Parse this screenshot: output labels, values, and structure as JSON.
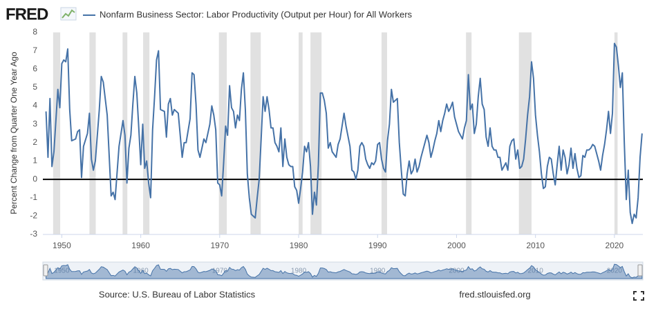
{
  "chart_data": {
    "type": "line",
    "logo": "FRED",
    "title": "Nonfarm Business Sector: Labor Productivity (Output per Hour) for All Workers",
    "y_label": "Percent Change from Quarter One Year Ago",
    "source": "Source: U.S. Bureau of Labor Statistics",
    "site": "fred.stlouisfed.org",
    "xlim": [
      1947.6,
      2023.6
    ],
    "ylim": [
      -3,
      8
    ],
    "xticks": [
      1950,
      1960,
      1970,
      1980,
      1990,
      2000,
      2010,
      2020
    ],
    "yticks": [
      -3,
      -2,
      -1,
      0,
      1,
      2,
      3,
      4,
      5,
      6,
      7,
      8
    ],
    "grid": false,
    "reference_line": 0,
    "recessions": [
      [
        1948.9,
        1949.8
      ],
      [
        1953.5,
        1954.3
      ],
      [
        1957.7,
        1958.3
      ],
      [
        1960.3,
        1961.1
      ],
      [
        1969.9,
        1970.9
      ],
      [
        1973.9,
        1975.2
      ],
      [
        1980.0,
        1980.5
      ],
      [
        1981.5,
        1982.9
      ],
      [
        1990.5,
        1991.2
      ],
      [
        2001.2,
        2001.9
      ],
      [
        2007.9,
        2009.5
      ],
      [
        2020.0,
        2020.4
      ]
    ],
    "series": [
      {
        "name": "Nonfarm Business Sector: Labor Productivity (Output per Hour) for All Workers",
        "color": "#4572a7",
        "x": [
          1948.0,
          1948.25,
          1948.5,
          1948.75,
          1949.0,
          1949.5,
          1949.75,
          1950.0,
          1950.25,
          1950.5,
          1950.75,
          1951.0,
          1951.25,
          1951.75,
          1952.0,
          1952.25,
          1952.5,
          1952.75,
          1953.25,
          1953.5,
          1953.75,
          1954.0,
          1954.25,
          1954.75,
          1955.0,
          1955.25,
          1955.75,
          1956.25,
          1956.5,
          1956.75,
          1957.25,
          1957.5,
          1957.75,
          1958.0,
          1958.25,
          1958.5,
          1958.75,
          1959.0,
          1959.25,
          1959.5,
          1959.75,
          1960.0,
          1960.25,
          1960.5,
          1960.75,
          1961.0,
          1961.25,
          1961.5,
          1961.75,
          1962.0,
          1962.25,
          1962.5,
          1963.0,
          1963.25,
          1963.5,
          1963.75,
          1964.0,
          1964.25,
          1964.75,
          1965.25,
          1965.5,
          1965.75,
          1966.25,
          1966.5,
          1966.75,
          1967.0,
          1967.25,
          1967.5,
          1968.0,
          1968.25,
          1968.75,
          1969.0,
          1969.25,
          1969.5,
          1969.75,
          1970.0,
          1970.25,
          1970.5,
          1970.75,
          1971.0,
          1971.25,
          1971.5,
          1971.75,
          1972.0,
          1972.25,
          1972.5,
          1972.75,
          1973.0,
          1973.25,
          1973.5,
          1973.75,
          1974.0,
          1974.25,
          1974.5,
          1974.75,
          1975.0,
          1975.25,
          1975.5,
          1975.75,
          1976.0,
          1976.25,
          1976.5,
          1976.75,
          1977.0,
          1977.25,
          1977.5,
          1977.75,
          1978.0,
          1978.25,
          1978.5,
          1978.75,
          1979.0,
          1979.25,
          1979.5,
          1979.75,
          1980.0,
          1980.25,
          1980.5,
          1980.75,
          1981.0,
          1981.25,
          1981.5,
          1981.75,
          1982.0,
          1982.25,
          1982.5,
          1982.75,
          1983.0,
          1983.25,
          1983.5,
          1983.75,
          1984.0,
          1984.25,
          1984.75,
          1985.0,
          1985.25,
          1985.5,
          1985.75,
          1986.0,
          1986.5,
          1986.75,
          1987.0,
          1987.25,
          1987.5,
          1987.75,
          1988.0,
          1988.25,
          1988.5,
          1988.75,
          1989.0,
          1989.25,
          1989.5,
          1989.75,
          1990.0,
          1990.25,
          1990.5,
          1990.75,
          1991.0,
          1991.25,
          1991.5,
          1991.75,
          1992.0,
          1992.25,
          1992.5,
          1992.75,
          1993.0,
          1993.25,
          1993.5,
          1993.75,
          1994.0,
          1994.25,
          1994.5,
          1994.75,
          1995.0,
          1995.25,
          1995.5,
          1995.75,
          1996.0,
          1996.25,
          1996.5,
          1996.75,
          1997.0,
          1997.25,
          1997.5,
          1997.75,
          1998.0,
          1998.25,
          1998.5,
          1998.75,
          1999.0,
          1999.25,
          1999.5,
          1999.75,
          2000.0,
          2000.25,
          2000.5,
          2000.75,
          2001.0,
          2001.25,
          2001.5,
          2001.75,
          2002.0,
          2002.25,
          2002.5,
          2002.75,
          2003.0,
          2003.25,
          2003.5,
          2003.75,
          2004.0,
          2004.25,
          2004.5,
          2004.75,
          2005.0,
          2005.25,
          2005.5,
          2005.75,
          2006.0,
          2006.25,
          2006.5,
          2006.75,
          2007.0,
          2007.25,
          2007.5,
          2007.75,
          2008.0,
          2008.25,
          2008.5,
          2008.75,
          2009.0,
          2009.25,
          2009.5,
          2009.75,
          2010.0,
          2010.25,
          2010.5,
          2010.75,
          2011.0,
          2011.25,
          2011.5,
          2011.75,
          2012.0,
          2012.25,
          2012.5,
          2012.75,
          2013.0,
          2013.25,
          2013.5,
          2013.75,
          2014.0,
          2014.25,
          2014.5,
          2014.75,
          2015.0,
          2015.25,
          2015.5,
          2015.75,
          2016.0,
          2016.25,
          2016.5,
          2016.75,
          2017.0,
          2017.25,
          2017.5,
          2017.75,
          2018.0,
          2018.25,
          2018.5,
          2018.75,
          2019.0,
          2019.25,
          2019.5,
          2019.75,
          2020.0,
          2020.25,
          2020.5,
          2020.75,
          2021.0,
          2021.25,
          2021.5,
          2021.75,
          2022.0,
          2022.25,
          2022.5,
          2022.75,
          2023.0,
          2023.25,
          2023.5
        ],
        "values": [
          3.7,
          1.2,
          4.4,
          0.7,
          1.5,
          4.9,
          3.9,
          6.3,
          6.5,
          6.4,
          7.1,
          3.8,
          2.1,
          2.2,
          2.6,
          2.7,
          0.1,
          1.8,
          2.5,
          3.6,
          1.1,
          0.5,
          1.0,
          3.8,
          5.6,
          5.3,
          3.5,
          -0.9,
          -0.7,
          -1.1,
          1.8,
          2.5,
          3.2,
          2.4,
          -0.2,
          1.7,
          2.4,
          4.1,
          5.6,
          4.7,
          2.8,
          0.8,
          3.0,
          0.6,
          1.0,
          -0.2,
          -1.0,
          2.7,
          4.5,
          6.5,
          7.0,
          3.8,
          3.7,
          2.3,
          4.1,
          4.4,
          3.5,
          3.8,
          3.6,
          1.2,
          2.0,
          2.0,
          3.3,
          5.8,
          5.7,
          4.1,
          1.6,
          1.2,
          2.2,
          2.0,
          3.0,
          4.0,
          3.5,
          2.7,
          -0.2,
          -0.3,
          -0.9,
          0.9,
          2.9,
          2.4,
          5.1,
          3.9,
          3.7,
          2.8,
          3.5,
          3.2,
          4.9,
          5.8,
          3.8,
          0.3,
          -1.0,
          -1.9,
          -2.0,
          -2.1,
          -1.0,
          0.0,
          2.2,
          4.5,
          3.7,
          4.5,
          3.8,
          2.8,
          2.8,
          2.0,
          1.8,
          1.5,
          2.8,
          0.7,
          2.2,
          1.2,
          0.8,
          0.7,
          0.7,
          -0.4,
          -0.6,
          -1.3,
          -0.5,
          0.4,
          1.8,
          1.5,
          2.0,
          0.7,
          -1.9,
          -0.7,
          -1.4,
          0.8,
          4.7,
          4.7,
          4.3,
          3.6,
          1.7,
          2.0,
          1.5,
          1.2,
          1.9,
          2.2,
          2.9,
          3.6,
          2.9,
          1.8,
          0.5,
          0.4,
          0.0,
          0.5,
          1.8,
          2.0,
          1.8,
          1.1,
          0.8,
          0.6,
          0.9,
          0.8,
          1.0,
          1.9,
          2.0,
          1.1,
          0.6,
          0.4,
          2.1,
          3.0,
          4.9,
          4.2,
          4.3,
          4.4,
          2.0,
          0.5,
          -0.8,
          -0.9,
          0.3,
          1.0,
          0.3,
          0.5,
          1.1,
          0.4,
          0.7,
          1.2,
          1.6,
          2.0,
          2.4,
          2.0,
          1.2,
          1.6,
          2.1,
          2.5,
          3.2,
          2.6,
          3.2,
          3.6,
          4.1,
          3.7,
          3.9,
          4.2,
          3.4,
          3.0,
          2.6,
          2.4,
          2.2,
          2.8,
          3.2,
          5.7,
          3.8,
          4.1,
          2.5,
          3.0,
          4.5,
          5.5,
          4.1,
          3.8,
          2.3,
          1.8,
          2.8,
          1.8,
          1.6,
          1.6,
          1.2,
          1.2,
          0.5,
          0.7,
          0.9,
          0.5,
          1.8,
          2.1,
          2.2,
          1.1,
          1.6,
          0.6,
          0.7,
          1.1,
          2.2,
          3.5,
          4.5,
          6.4,
          5.5,
          3.5,
          2.4,
          1.5,
          0.3,
          -0.5,
          -0.4,
          0.7,
          1.2,
          1.1,
          0.3,
          -0.3,
          0.8,
          1.8,
          0.5,
          1.6,
          1.2,
          0.3,
          0.8,
          1.7,
          0.6,
          1.4,
          0.6,
          0.1,
          0.2,
          1.3,
          1.2,
          1.6,
          1.6,
          1.7,
          1.9,
          1.8,
          1.4,
          1.0,
          0.5,
          1.3,
          1.9,
          2.7,
          3.7,
          2.5,
          3.6,
          7.4,
          7.2,
          6.2,
          5.0,
          5.8,
          2.0,
          -1.1,
          0.5,
          -1.8,
          -2.4,
          -1.9,
          -2.1,
          -1.0,
          1.2,
          2.5
        ]
      }
    ]
  }
}
